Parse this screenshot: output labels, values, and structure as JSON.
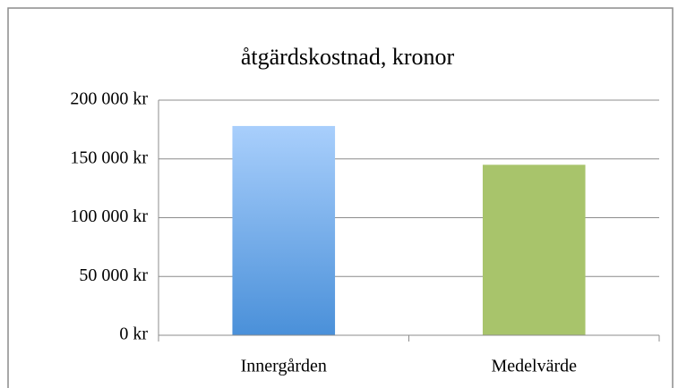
{
  "chart_data": {
    "type": "bar",
    "title": "åtgärdskostnad, kronor",
    "categories": [
      "Innergården",
      "Medelvärde"
    ],
    "values": [
      178000,
      145000
    ],
    "colors": [
      "#4a90d9",
      "#a8c46b"
    ],
    "gradient_colors": [
      "#a9cffc",
      "#a8c46b"
    ],
    "ylim": [
      0,
      200000
    ],
    "yticks": [
      {
        "value": 0,
        "label": "0 kr"
      },
      {
        "value": 50000,
        "label": "50 000 kr"
      },
      {
        "value": 100000,
        "label": "100 000 kr"
      },
      {
        "value": 150000,
        "label": "150 000 kr"
      },
      {
        "value": 200000,
        "label": "200 000 kr"
      }
    ],
    "grid": true
  }
}
